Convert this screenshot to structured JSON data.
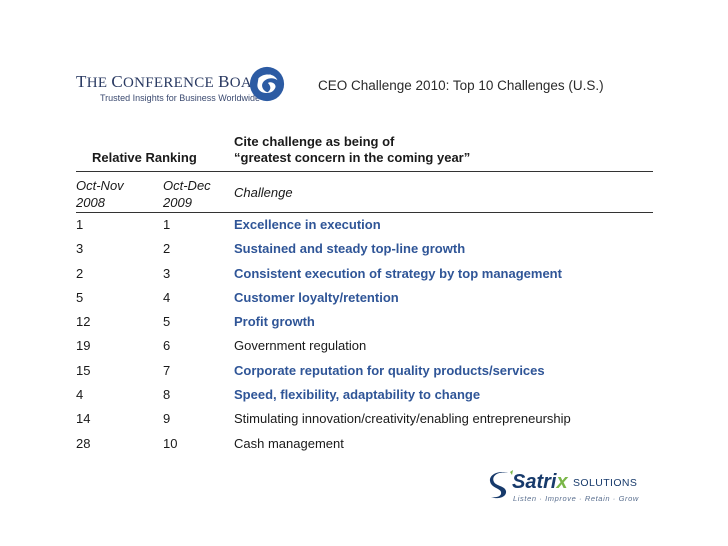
{
  "header": {
    "org_name_cap1": "T",
    "org_name_rest1": "HE ",
    "org_name_cap2": "C",
    "org_name_rest2": "ONFERENCE ",
    "org_name_cap3": "B",
    "org_name_rest3": "OARD",
    "org_tagline": "Trusted Insights for Business Worldwide",
    "slide_title": "CEO Challenge 2010: Top 10 Challenges (U.S.)"
  },
  "table": {
    "group_header_left": "Relative Ranking",
    "group_header_right_line1": "Cite challenge as being of",
    "group_header_right_line2": "“greatest concern in the coming year”",
    "col1_line1": "Oct-Nov",
    "col1_line2": "2008",
    "col2_line1": "Oct-Dec",
    "col2_line2": "2009",
    "col3": "Challenge",
    "rows": [
      {
        "rank_2008": "1",
        "rank_2009": "1",
        "challenge": "Excellence in execution"
      },
      {
        "rank_2008": "3",
        "rank_2009": "2",
        "challenge": "Sustained and steady top-line growth"
      },
      {
        "rank_2008": "2",
        "rank_2009": "3",
        "challenge": "Consistent execution of strategy by top management"
      },
      {
        "rank_2008": "5",
        "rank_2009": "4",
        "challenge": "Customer loyalty/retention"
      },
      {
        "rank_2008": "12",
        "rank_2009": "5",
        "challenge": "Profit growth"
      },
      {
        "rank_2008": "19",
        "rank_2009": "6",
        "challenge": "Government regulation"
      },
      {
        "rank_2008": "15",
        "rank_2009": "7",
        "challenge": "Corporate reputation for quality products/services"
      },
      {
        "rank_2008": "4",
        "rank_2009": "8",
        "challenge": "Speed, flexibility, adaptability to change"
      },
      {
        "rank_2008": "14",
        "rank_2009": "9",
        "challenge": "Stimulating innovation/creativity/enabling entrepreneurship"
      },
      {
        "rank_2008": "28",
        "rank_2009": "10",
        "challenge": "Cash management"
      }
    ]
  },
  "footer": {
    "brand_name": "Satri",
    "brand_x": "x",
    "brand_solutions": "SOLUTIONS",
    "brand_tagline": "Listen · Improve · Retain · Grow"
  },
  "colors": {
    "highlight": "#2f5597",
    "brand_navy": "#173a6b",
    "brand_green": "#7ab648"
  }
}
